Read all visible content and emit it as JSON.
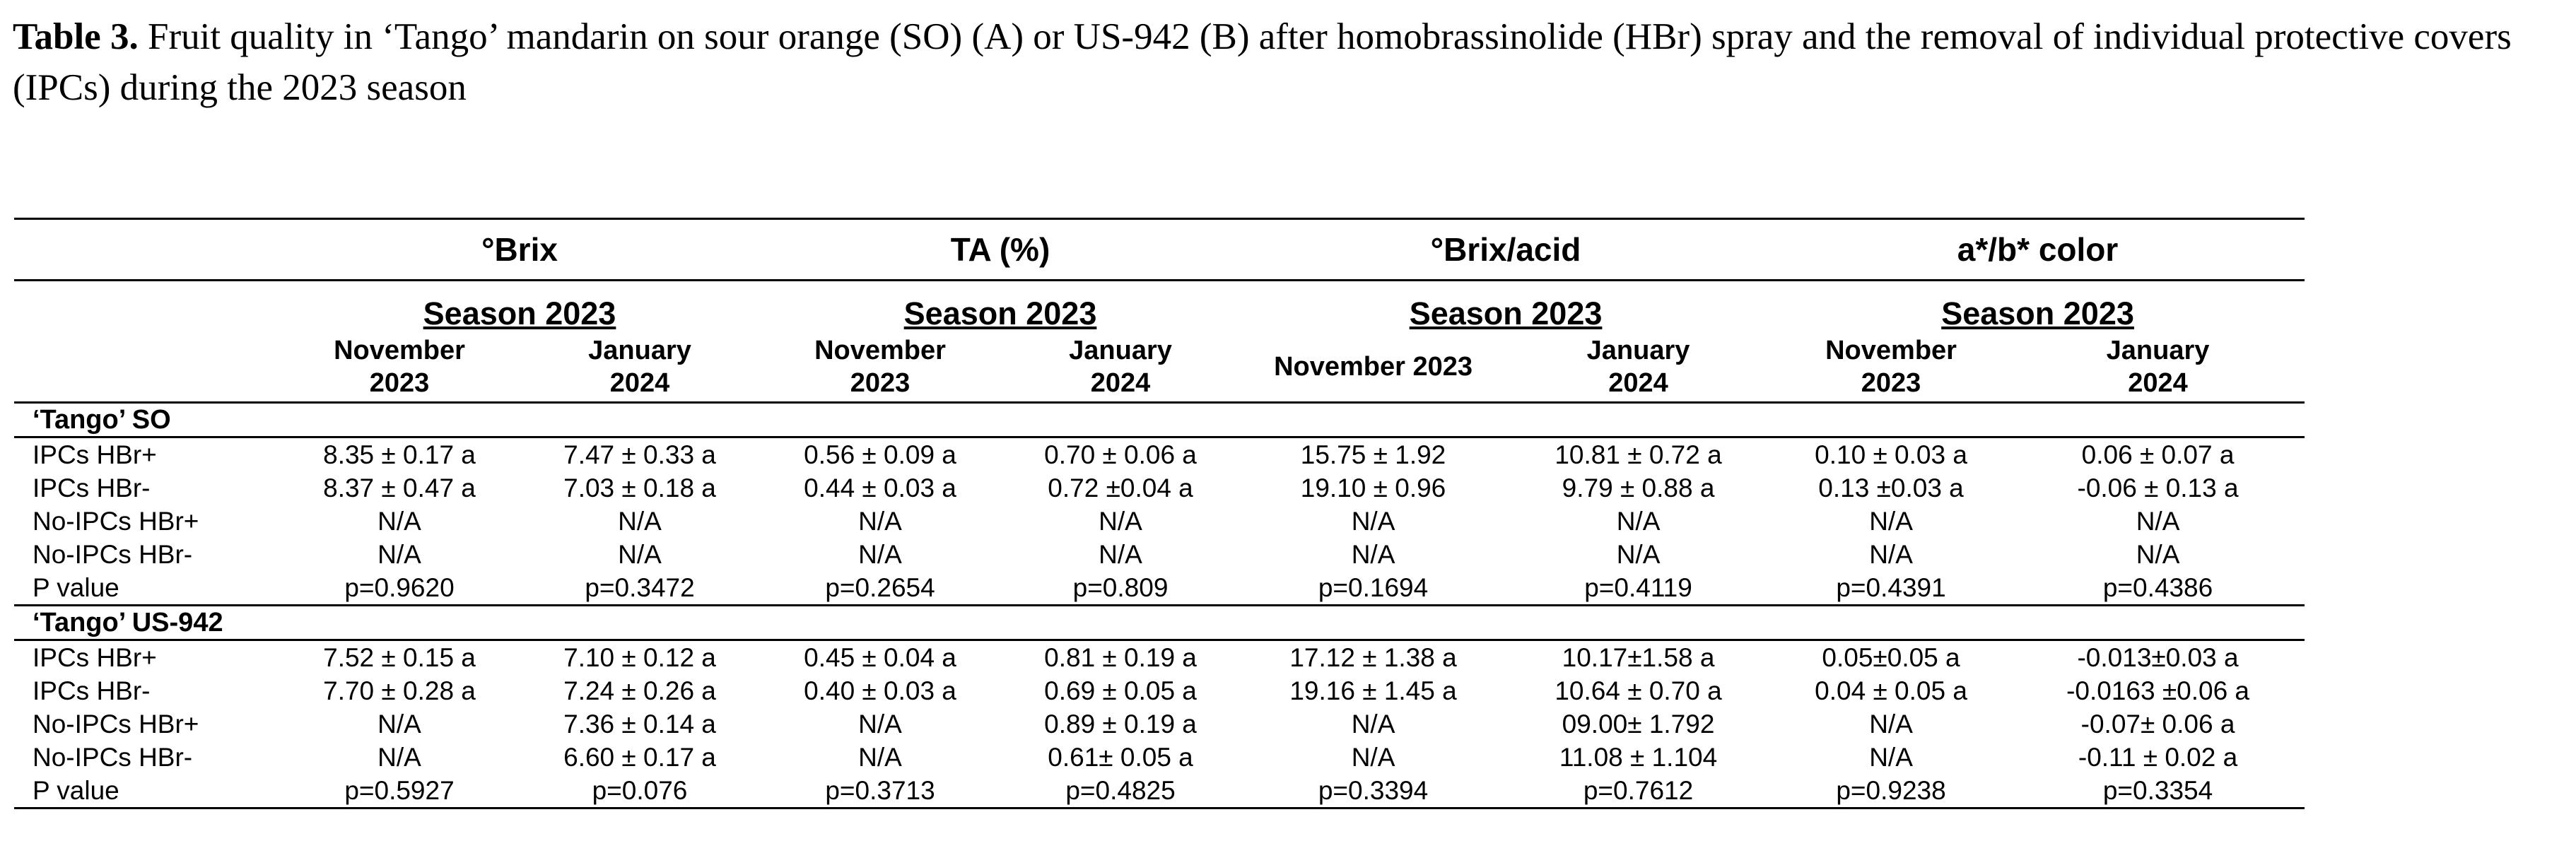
{
  "caption": {
    "label": "Table 3.",
    "text": " Fruit quality in ‘Tango’ mandarin on sour orange (SO) (A) or US-942 (B) after homobrassinolide (HBr) spray and the removal of individual protective covers (IPCs) during the 2023 season"
  },
  "table": {
    "variables": [
      "°Brix",
      "TA (%)",
      "°Brix/acid",
      "a*/b* color"
    ],
    "season_label": "Season 2023",
    "dates": [
      [
        "November\n2023",
        "January\n2024"
      ],
      [
        "November\n2023",
        "January\n2024"
      ],
      [
        "November 2023",
        "January\n2024"
      ],
      [
        "November\n2023",
        "January\n2024"
      ]
    ],
    "groups": [
      {
        "name": "‘Tango’ SO",
        "rows": [
          {
            "label": "IPCs HBr+",
            "values": [
              "8.35 ± 0.17 a",
              "7.47 ± 0.33 a",
              "0.56 ± 0.09 a",
              "0.70 ± 0.06 a",
              "15.75 ± 1.92",
              "10.81 ± 0.72 a",
              "0.10 ± 0.03 a",
              "0.06 ± 0.07 a"
            ]
          },
          {
            "label": "IPCs HBr-",
            "values": [
              "8.37 ± 0.47 a",
              "7.03 ± 0.18 a",
              "0.44 ± 0.03 a",
              "0.72 ±0.04 a",
              "19.10 ± 0.96",
              "9.79 ± 0.88 a",
              "0.13 ±0.03 a",
              "-0.06 ± 0.13 a"
            ]
          },
          {
            "label": "No-IPCs HBr+",
            "values": [
              "N/A",
              "N/A",
              "N/A",
              "N/A",
              "N/A",
              "N/A",
              "N/A",
              "N/A"
            ]
          },
          {
            "label": "No-IPCs HBr-",
            "values": [
              "N/A",
              "N/A",
              "N/A",
              "N/A",
              "N/A",
              "N/A",
              "N/A",
              "N/A"
            ]
          },
          {
            "label": "P value",
            "values": [
              "p=0.9620",
              "p=0.3472",
              "p=0.2654",
              "p=0.809",
              "p=0.1694",
              "p=0.4119",
              "p=0.4391",
              "p=0.4386"
            ]
          }
        ]
      },
      {
        "name": "‘Tango’ US-942",
        "rows": [
          {
            "label": "IPCs HBr+",
            "values": [
              "7.52 ± 0.15 a",
              "7.10 ± 0.12 a",
              "0.45 ± 0.04 a",
              "0.81 ± 0.19 a",
              "17.12 ± 1.38 a",
              "10.17±1.58 a",
              "0.05±0.05 a",
              "-0.013±0.03 a"
            ]
          },
          {
            "label": "IPCs HBr-",
            "values": [
              "7.70 ± 0.28 a",
              "7.24 ± 0.26 a",
              "0.40 ± 0.03 a",
              "0.69 ± 0.05 a",
              "19.16 ± 1.45 a",
              "10.64 ± 0.70 a",
              "0.04 ± 0.05 a",
              "-0.0163 ±0.06 a"
            ]
          },
          {
            "label": "No-IPCs HBr+",
            "values": [
              "N/A",
              "7.36 ± 0.14 a",
              "N/A",
              "0.89 ± 0.19 a",
              "N/A",
              "09.00± 1.792",
              "N/A",
              "-0.07± 0.06 a"
            ]
          },
          {
            "label": "No-IPCs HBr-",
            "values": [
              "N/A",
              "6.60 ± 0.17 a",
              "N/A",
              "0.61± 0.05 a",
              "N/A",
              "11.08 ± 1.104",
              "N/A",
              "-0.11 ± 0.02 a"
            ]
          },
          {
            "label": "P value",
            "values": [
              "p=0.5927",
              "p=0.076",
              "p=0.3713",
              "p=0.4825",
              "p=0.3394",
              "p=0.7612",
              "p=0.9238",
              "p=0.3354"
            ]
          }
        ]
      }
    ]
  }
}
